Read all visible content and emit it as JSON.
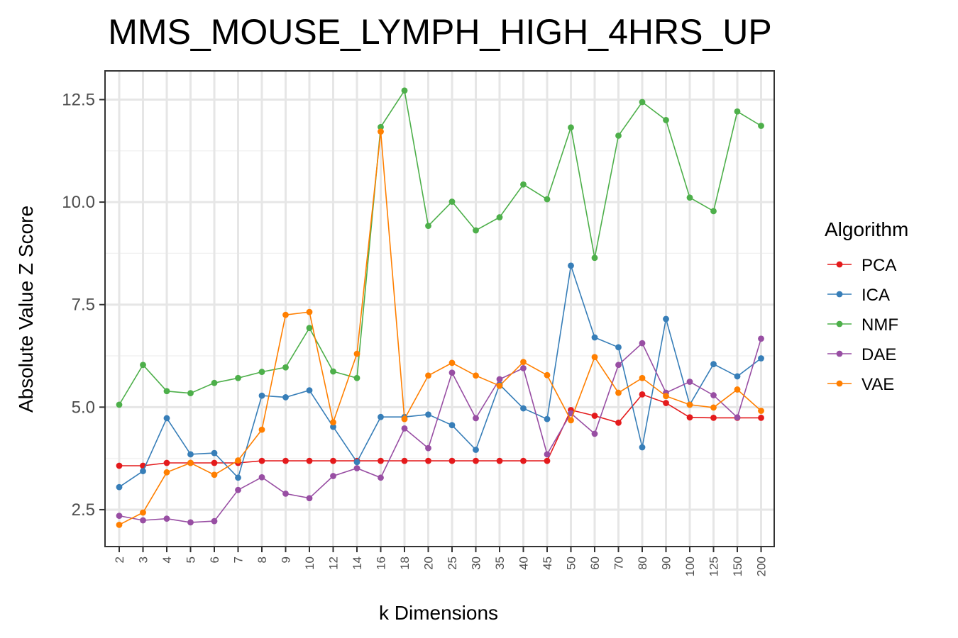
{
  "chart_data": {
    "type": "line",
    "title": "MMS_MOUSE_LYMPH_HIGH_4HRS_UP",
    "xlabel": "k Dimensions",
    "ylabel": "Absolute Value Z Score",
    "ylim": [
      1.6,
      13.2
    ],
    "yticks": [
      2.5,
      5.0,
      7.5,
      10.0,
      12.5
    ],
    "ytick_labels": [
      "2.5",
      "5.0",
      "7.5",
      "10.0",
      "12.5"
    ],
    "categories": [
      "2",
      "3",
      "4",
      "5",
      "6",
      "7",
      "8",
      "9",
      "10",
      "12",
      "14",
      "16",
      "18",
      "20",
      "25",
      "30",
      "35",
      "40",
      "45",
      "50",
      "60",
      "70",
      "80",
      "90",
      "100",
      "125",
      "150",
      "200"
    ],
    "legend": {
      "title": "Algorithm",
      "position": "right"
    },
    "series": [
      {
        "name": "PCA",
        "color": "#e41a1c",
        "values": [
          3.57,
          3.57,
          3.64,
          3.64,
          3.64,
          3.64,
          3.69,
          3.69,
          3.69,
          3.69,
          3.69,
          3.69,
          3.69,
          3.69,
          3.69,
          3.69,
          3.69,
          3.69,
          3.69,
          4.93,
          4.79,
          4.62,
          5.31,
          5.1,
          4.75,
          4.74,
          4.74,
          4.74
        ]
      },
      {
        "name": "ICA",
        "color": "#377eb8",
        "values": [
          3.05,
          3.44,
          4.73,
          3.85,
          3.88,
          3.28,
          5.28,
          5.24,
          5.41,
          4.52,
          3.66,
          4.76,
          4.76,
          4.82,
          4.56,
          3.96,
          5.55,
          4.97,
          4.71,
          8.45,
          6.7,
          6.46,
          4.02,
          7.15,
          5.06,
          6.05,
          5.75,
          6.19
        ]
      },
      {
        "name": "NMF",
        "color": "#4daf4a",
        "values": [
          5.06,
          6.03,
          5.39,
          5.34,
          5.59,
          5.71,
          5.86,
          5.97,
          6.93,
          5.87,
          5.71,
          11.83,
          12.72,
          9.42,
          10.01,
          9.31,
          9.63,
          10.43,
          10.07,
          11.82,
          8.64,
          11.62,
          12.44,
          12.0,
          10.11,
          9.78,
          12.21,
          11.86
        ]
      },
      {
        "name": "DAE",
        "color": "#984ea3",
        "values": [
          2.35,
          2.24,
          2.28,
          2.19,
          2.22,
          2.98,
          3.29,
          2.89,
          2.78,
          3.32,
          3.51,
          3.28,
          4.48,
          4.0,
          5.84,
          4.73,
          5.68,
          5.95,
          3.85,
          4.85,
          4.35,
          6.03,
          6.56,
          5.35,
          5.62,
          5.29,
          4.75,
          6.67
        ]
      },
      {
        "name": "VAE",
        "color": "#ff7f00",
        "values": [
          2.13,
          2.43,
          3.41,
          3.64,
          3.35,
          3.7,
          4.45,
          7.25,
          7.32,
          4.63,
          6.3,
          11.72,
          4.71,
          5.77,
          6.08,
          5.77,
          5.52,
          6.1,
          5.78,
          4.68,
          6.22,
          5.35,
          5.71,
          5.27,
          5.06,
          4.99,
          5.43,
          4.91
        ]
      }
    ]
  }
}
